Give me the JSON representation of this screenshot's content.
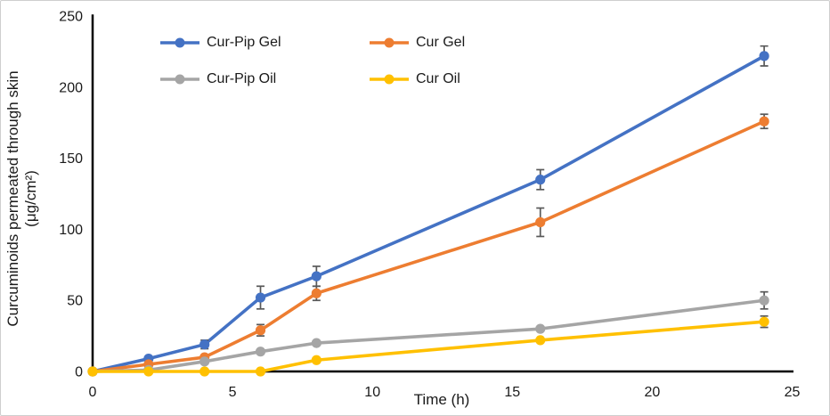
{
  "chart_data": {
    "type": "line",
    "x": [
      0,
      2,
      4,
      6,
      8,
      16,
      24
    ],
    "series": [
      {
        "name": "Cur-Pip Gel",
        "color": "#4472C4",
        "values": [
          0,
          9,
          19,
          52,
          67,
          135,
          222
        ],
        "errors": [
          0,
          0,
          3,
          8,
          7,
          7,
          7
        ]
      },
      {
        "name": "Cur Gel",
        "color": "#ED7D31",
        "values": [
          0,
          5,
          10,
          29,
          55,
          105,
          176
        ],
        "errors": [
          0,
          0,
          0,
          4,
          5,
          10,
          5
        ]
      },
      {
        "name": "Cur-Pip Oil",
        "color": "#A5A5A5",
        "values": [
          0,
          1,
          7,
          14,
          20,
          30,
          50
        ],
        "errors": [
          0,
          0,
          0,
          0,
          0,
          0,
          6
        ]
      },
      {
        "name": "Cur Oil",
        "color": "#FFC000",
        "values": [
          0,
          0,
          0,
          0,
          8,
          22,
          35
        ],
        "errors": [
          0,
          0,
          0,
          0,
          0,
          0,
          4
        ]
      }
    ],
    "xlabel": "Time (h)",
    "ylabel_line1": "Curcuminoids permeated through skin",
    "ylabel_line2": "(μg/cm²)",
    "xlim": [
      0,
      25
    ],
    "ylim": [
      0,
      250
    ],
    "xticks": [
      0,
      5,
      10,
      15,
      20,
      25
    ],
    "yticks": [
      0,
      50,
      100,
      150,
      200,
      250
    ],
    "grid": false,
    "legend_position": "top",
    "axis_color": "#000000",
    "error_bar_color": "#595959",
    "text_color": "#1a1a1a"
  }
}
